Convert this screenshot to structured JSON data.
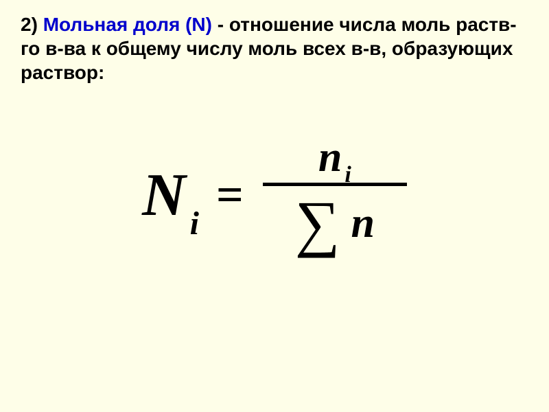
{
  "definition": {
    "number": "2) ",
    "term": "Мольная доля (N)",
    "text": " - отношение числа моль раств-го в-ва к общему числу моль всех в-в,    образующих раствор:"
  },
  "formula": {
    "lhs_var": "N",
    "lhs_sub": "i",
    "equals": "=",
    "numerator_var": "n",
    "numerator_sub": "i",
    "sigma": "∑",
    "denom_var": "n"
  },
  "colors": {
    "background": "#fefee8",
    "term": "#0000cc",
    "text": "#000000"
  },
  "typography": {
    "definition_fontsize": 28,
    "var_large_fontsize": 88,
    "sub_large_fontsize": 48,
    "equals_fontsize": 70,
    "var_med_fontsize": 62,
    "sub_med_fontsize": 34,
    "sigma_fontsize": 92,
    "frac_line_width": 210,
    "frac_line_height": 5
  }
}
